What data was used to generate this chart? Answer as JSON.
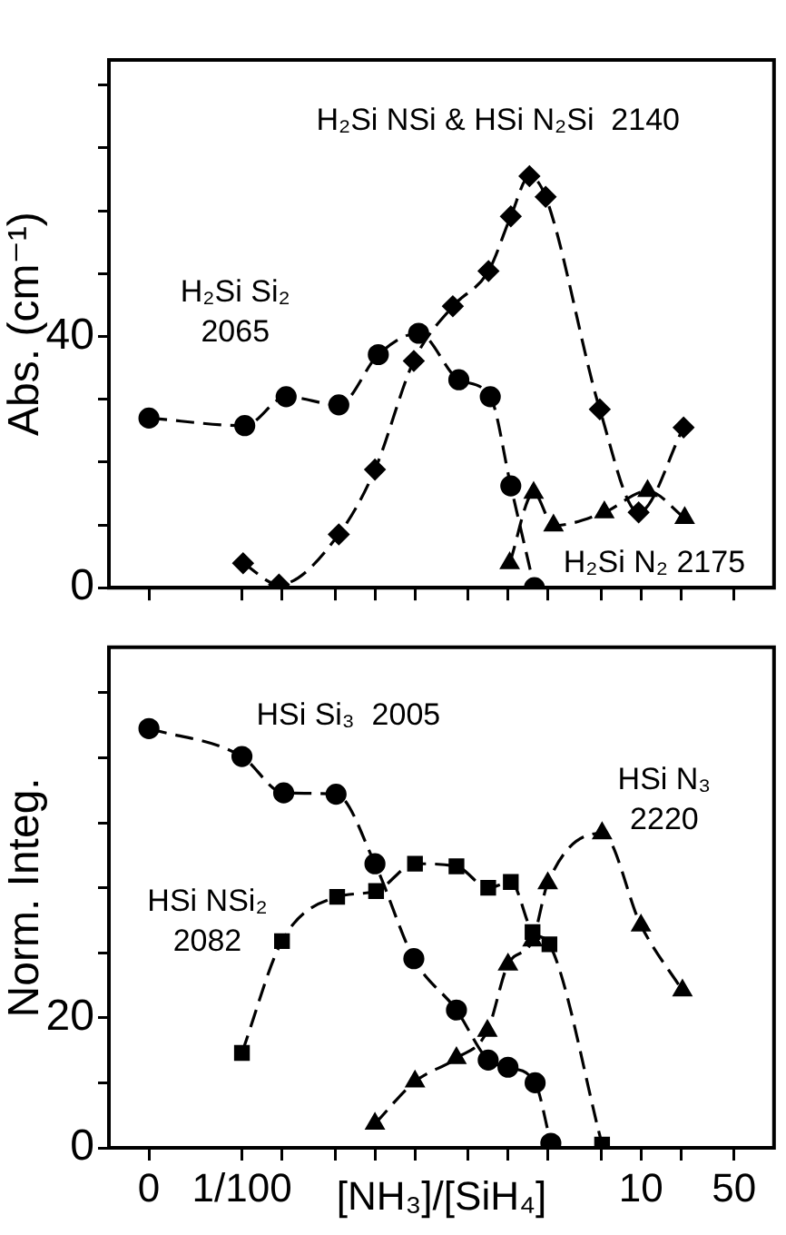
{
  "chart_data": [
    {
      "type": "line",
      "ylabel": "Abs. (cm⁻¹)",
      "log": "x",
      "grid": false,
      "legend": false,
      "line_style": "dashed",
      "tick_labels": "y",
      "xlim": [
        0.001,
        100
      ],
      "xticks": [
        {
          "value": 0.002,
          "label": null
        },
        {
          "value": 0.01,
          "label": null
        },
        {
          "value": 0.02,
          "label": null
        },
        {
          "value": 0.05,
          "label": null
        },
        {
          "value": 0.1,
          "label": null
        },
        {
          "value": 0.2,
          "label": null
        },
        {
          "value": 0.5,
          "label": null
        },
        {
          "value": 1,
          "label": null
        },
        {
          "value": 2,
          "label": null
        },
        {
          "value": 5,
          "label": null
        },
        {
          "value": 10,
          "label": null
        },
        {
          "value": 20,
          "label": null
        },
        {
          "value": 50,
          "label": null
        }
      ],
      "ylim": [
        0,
        84
      ],
      "yticks": [
        0,
        {
          "value": 10,
          "label": null
        },
        {
          "value": 20,
          "label": null
        },
        {
          "value": 30,
          "label": null
        },
        40,
        {
          "value": 50,
          "label": null
        },
        {
          "value": 60,
          "label": null
        },
        {
          "value": 70,
          "label": null
        },
        {
          "value": 80,
          "label": null
        }
      ],
      "series": [
        {
          "name": "H₂Si Si₂\n2065",
          "color": "#000000",
          "marker": "circle",
          "x": [
            0.002,
            0.0105,
            0.0215,
            0.0535,
            0.106,
            0.213,
            0.427,
            0.736,
            1.05,
            1.58
          ],
          "values": [
            27.0,
            25.8,
            30.4,
            29.1,
            37.1,
            40.5,
            33.1,
            30.4,
            16.2,
            0
          ]
        },
        {
          "name": "H₂Si NSi & HSi N₂Si  2140",
          "color": "#000000",
          "marker": "diamond",
          "x": [
            0.0102,
            0.019,
            0.0535,
            0.1,
            0.196,
            0.385,
            0.714,
            1.05,
            1.45,
            1.92,
            4.9,
            9.6,
            20.9
          ],
          "values": [
            3.9,
            0.5,
            8.5,
            18.8,
            36.1,
            44.8,
            50.4,
            59.1,
            65.5,
            62.2,
            28.4,
            12.0,
            25.5
          ]
        },
        {
          "name": "H₂Si N₂ 2175",
          "color": "#000000",
          "marker": "triangle",
          "x": [
            1.03,
            1.56,
            2.2,
            5.3,
            11.2,
            21.3
          ],
          "values": [
            3.9,
            15.1,
            9.9,
            12.0,
            15.4,
            11.1
          ]
        }
      ]
    },
    {
      "type": "line",
      "ylabel": "Norm. Integ.",
      "xlabel": "[NH₃]/[SiH₄]",
      "log": "x",
      "grid": false,
      "legend": false,
      "line_style": "dashed",
      "xlim": [
        0.001,
        100
      ],
      "xticks": [
        {
          "value": 0.002,
          "label": "0"
        },
        {
          "value": 0.01,
          "label": "1/100"
        },
        {
          "value": 0.02,
          "label": null
        },
        {
          "value": 0.05,
          "label": null
        },
        {
          "value": 0.1,
          "label": null
        },
        {
          "value": 0.2,
          "label": null
        },
        {
          "value": 0.5,
          "label": null
        },
        {
          "value": 1,
          "label": null
        },
        {
          "value": 2,
          "label": null
        },
        {
          "value": 5,
          "label": null
        },
        10,
        {
          "value": 20,
          "label": null
        },
        50
      ],
      "ylim": [
        0,
        77
      ],
      "yticks": [
        0,
        {
          "value": 10,
          "label": null
        },
        20,
        {
          "value": 30,
          "label": null
        },
        {
          "value": 40,
          "label": null
        },
        {
          "value": 50,
          "label": null
        },
        {
          "value": 60,
          "label": null
        },
        {
          "value": 70,
          "label": null
        }
      ],
      "series": [
        {
          "name": "HSi Si₃  2005",
          "color": "#000000",
          "marker": "circle",
          "x": [
            0.002,
            0.01,
            0.0206,
            0.051,
            0.1,
            0.196,
            0.41,
            0.71,
            1.0,
            1.6,
            2.1
          ],
          "values": [
            64.5,
            60.2,
            54.6,
            54.4,
            43.7,
            29.1,
            21.2,
            13.5,
            12.4,
            10.0,
            0.7
          ]
        },
        {
          "name": "HSi NSi₂\n2082",
          "color": "#000000",
          "marker": "square",
          "x": [
            0.01,
            0.02,
            0.052,
            0.102,
            0.2,
            0.41,
            0.71,
            1.05,
            1.53,
            2.05,
            5.1
          ],
          "values": [
            14.6,
            31.8,
            38.6,
            39.5,
            43.7,
            43.3,
            40.0,
            40.9,
            33.2,
            31.3,
            0.5
          ]
        },
        {
          "name": "HSi N₃\n2220",
          "color": "#000000",
          "marker": "triangle",
          "x": [
            0.1,
            0.2,
            0.41,
            0.7,
            1.0,
            1.53,
            1.99,
            5.1,
            10.0,
            20.5
          ],
          "values": [
            3.7,
            10.2,
            13.8,
            18.0,
            28.2,
            31.9,
            40.7,
            48.4,
            34.2,
            24.2
          ]
        }
      ]
    }
  ]
}
